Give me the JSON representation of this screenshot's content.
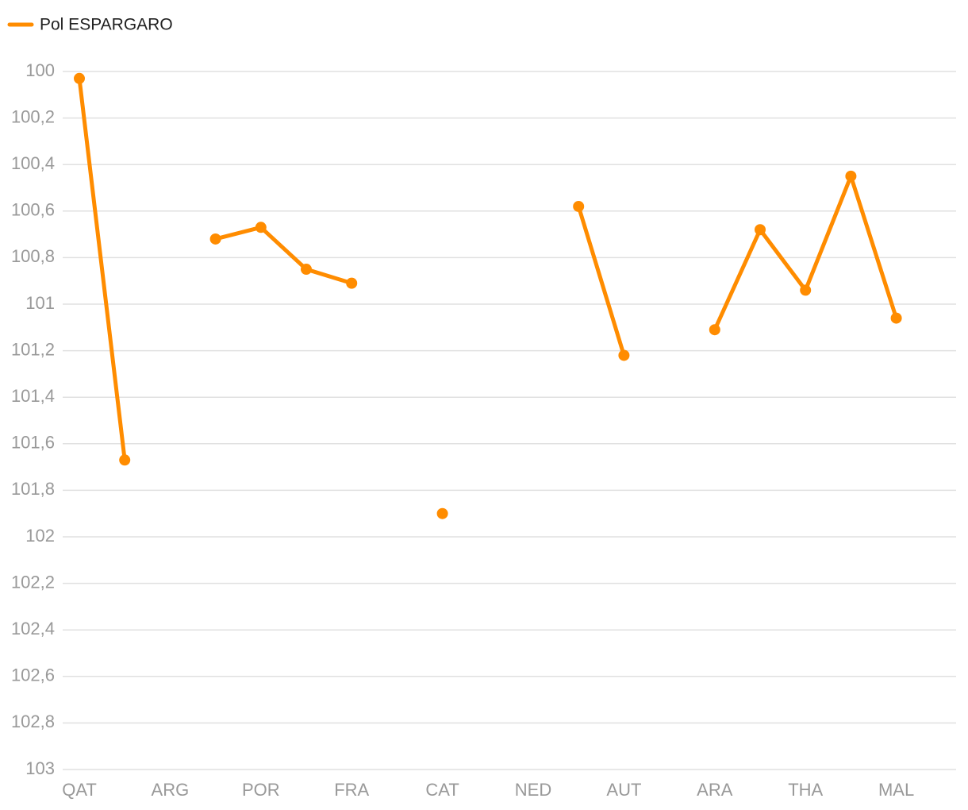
{
  "chart_data": {
    "type": "line",
    "categories": [
      "QAT",
      null,
      "ARG",
      null,
      "POR",
      null,
      "FRA",
      null,
      "CAT",
      null,
      "NED",
      null,
      "AUT",
      null,
      "ARA",
      null,
      "THA",
      null,
      "MAL",
      null
    ],
    "series": [
      {
        "name": "Pol ESPARGARO",
        "color": "#ff8c00",
        "values": [
          100.03,
          101.67,
          null,
          100.72,
          100.67,
          100.85,
          100.91,
          null,
          101.9,
          null,
          null,
          100.58,
          101.22,
          null,
          101.11,
          100.68,
          100.94,
          100.45,
          101.06,
          null
        ]
      }
    ],
    "ylim": [
      100,
      103
    ],
    "y_inverted": true,
    "yticks": [
      100,
      {
        "value": 100.2,
        "label": "100,2"
      },
      {
        "value": 100.4,
        "label": "100,4"
      },
      {
        "value": 100.6,
        "label": "100,6"
      },
      {
        "value": 100.8,
        "label": "100,8"
      },
      101,
      {
        "value": 101.2,
        "label": "101,2"
      },
      {
        "value": 101.4,
        "label": "101,4"
      },
      {
        "value": 101.6,
        "label": "101,6"
      },
      {
        "value": 101.8,
        "label": "101,8"
      },
      102,
      {
        "value": 102.2,
        "label": "102,2"
      },
      {
        "value": 102.4,
        "label": "102,4"
      },
      {
        "value": 102.6,
        "label": "102,6"
      },
      {
        "value": 102.8,
        "label": "102,8"
      },
      103
    ],
    "grid": true,
    "legend": "top-left"
  }
}
